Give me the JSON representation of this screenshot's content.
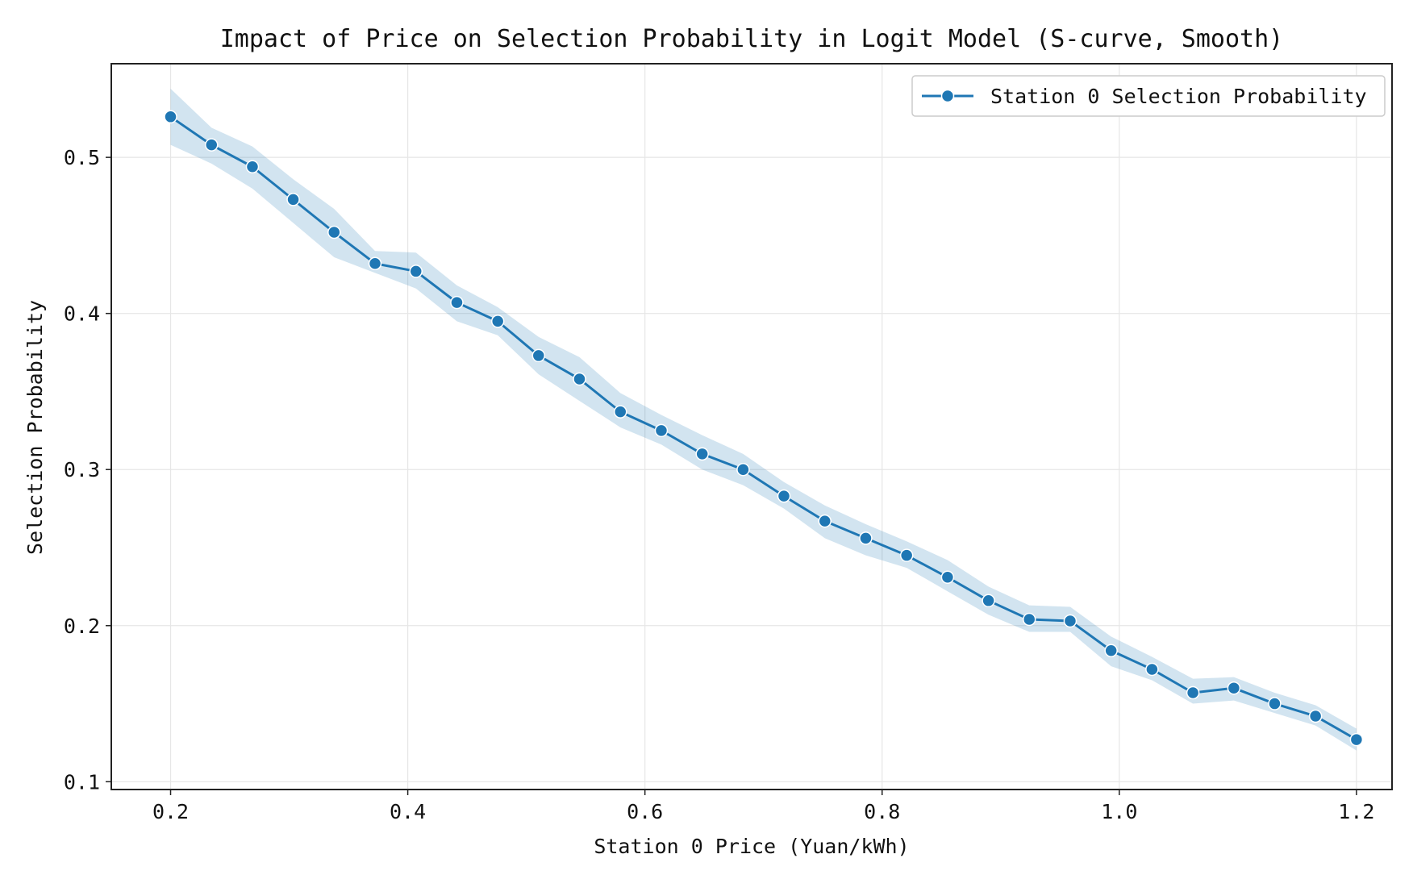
{
  "chart_data": {
    "type": "line",
    "title": "Impact of Price on Selection Probability in Logit Model (S-curve, Smooth)",
    "xlabel": "Station 0 Price (Yuan/kWh)",
    "ylabel": "Selection Probability",
    "xlim": [
      0.15,
      1.23
    ],
    "ylim": [
      0.095,
      0.56
    ],
    "xticks": [
      0.2,
      0.4,
      0.6,
      0.8,
      1.0,
      1.2
    ],
    "xtick_labels": [
      "0.2",
      "0.4",
      "0.6",
      "0.8",
      "1.0",
      "1.2"
    ],
    "yticks": [
      0.1,
      0.2,
      0.3,
      0.4,
      0.5
    ],
    "ytick_labels": [
      "0.1",
      "0.2",
      "0.3",
      "0.4",
      "0.5"
    ],
    "grid": true,
    "legend_position": "top-right",
    "colors": {
      "line": "#1f77b4",
      "band": "#1f77b4"
    },
    "series": [
      {
        "name": "Station 0 Selection Probability",
        "x": [
          0.2,
          0.2345,
          0.269,
          0.3034,
          0.3379,
          0.3724,
          0.4069,
          0.4414,
          0.4759,
          0.5103,
          0.5448,
          0.5793,
          0.6138,
          0.6483,
          0.6828,
          0.7172,
          0.7517,
          0.7862,
          0.8207,
          0.8552,
          0.8897,
          0.9241,
          0.9586,
          0.9931,
          1.0276,
          1.0621,
          1.0966,
          1.131,
          1.1655,
          1.2
        ],
        "y": [
          0.526,
          0.508,
          0.494,
          0.473,
          0.452,
          0.432,
          0.427,
          0.407,
          0.395,
          0.373,
          0.358,
          0.337,
          0.325,
          0.31,
          0.3,
          0.283,
          0.267,
          0.256,
          0.245,
          0.231,
          0.216,
          0.204,
          0.203,
          0.184,
          0.172,
          0.157,
          0.16,
          0.15,
          0.142,
          0.127
        ],
        "band_lower": [
          0.508,
          0.496,
          0.48,
          0.458,
          0.436,
          0.426,
          0.416,
          0.395,
          0.386,
          0.361,
          0.344,
          0.327,
          0.316,
          0.3,
          0.29,
          0.275,
          0.256,
          0.245,
          0.237,
          0.222,
          0.207,
          0.196,
          0.196,
          0.174,
          0.165,
          0.15,
          0.152,
          0.144,
          0.136,
          0.12
        ],
        "band_upper": [
          0.544,
          0.519,
          0.507,
          0.486,
          0.467,
          0.44,
          0.439,
          0.418,
          0.404,
          0.385,
          0.372,
          0.349,
          0.335,
          0.322,
          0.31,
          0.292,
          0.277,
          0.265,
          0.254,
          0.242,
          0.225,
          0.213,
          0.212,
          0.193,
          0.18,
          0.166,
          0.167,
          0.157,
          0.149,
          0.134
        ]
      }
    ]
  }
}
